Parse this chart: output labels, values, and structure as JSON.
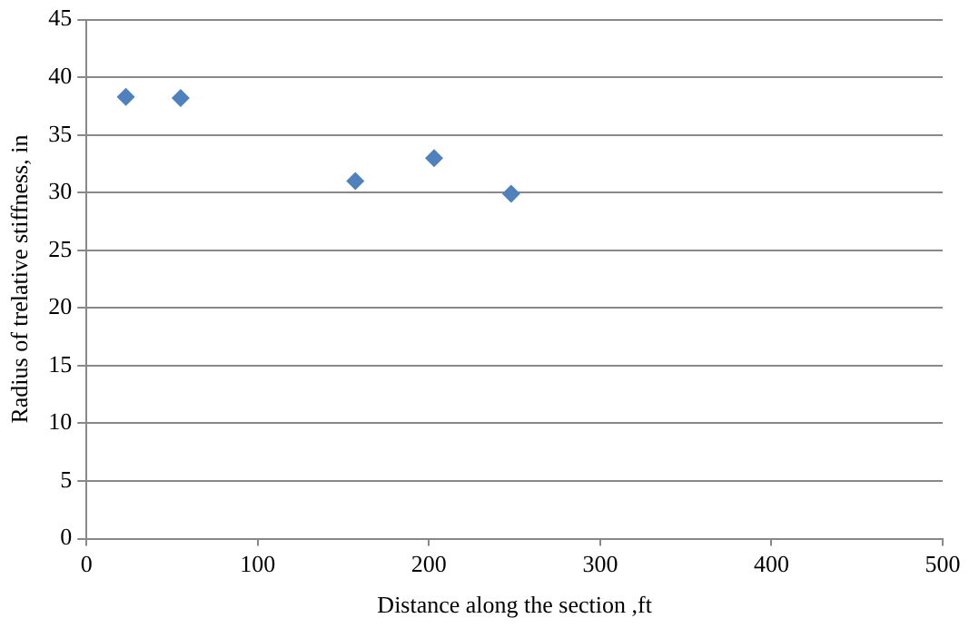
{
  "chart_data": {
    "type": "scatter",
    "xlabel": "Distance along the section ,ft",
    "ylabel": "Radius of trelative stiffness, in",
    "x": [
      23,
      55,
      157,
      203,
      248
    ],
    "series": [
      {
        "color": "#4f81bd",
        "values": [
          38.3,
          38.2,
          31,
          33,
          29.9
        ]
      }
    ],
    "xlim": [
      0,
      500
    ],
    "xticks": [
      0,
      100,
      200,
      300,
      400,
      500
    ],
    "ylim": [
      0,
      45
    ],
    "yticks": [
      0,
      5,
      10,
      15,
      20,
      25,
      30,
      35,
      40,
      45
    ],
    "grid": "y",
    "legend": false,
    "marker": "diamond"
  }
}
